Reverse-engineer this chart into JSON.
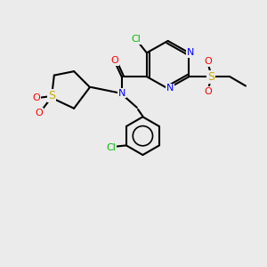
{
  "bg_color": "#ebebeb",
  "bond_color": "#000000",
  "bond_width": 1.5,
  "atom_colors": {
    "N": "#0000ff",
    "O": "#ff0000",
    "S": "#ccaa00",
    "Cl": "#00bb00",
    "C": "#000000"
  },
  "font_size": 8.0,
  "figsize": [
    3.0,
    3.0
  ],
  "dpi": 100
}
